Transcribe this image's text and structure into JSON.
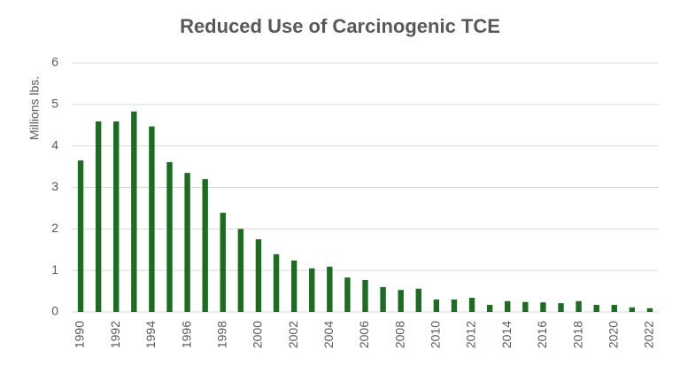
{
  "chart_data": {
    "type": "bar",
    "title": "Reduced Use of Carcinogenic TCE",
    "y_label": "Millions lbs.",
    "categories": [
      "1990",
      null,
      "1992",
      null,
      "1994",
      null,
      "1996",
      null,
      "1998",
      null,
      "2000",
      null,
      "2002",
      null,
      "2004",
      null,
      "2006",
      null,
      "2008",
      null,
      "2010",
      null,
      "2012",
      null,
      "2014",
      null,
      "2016",
      null,
      "2018",
      null,
      "2020",
      null,
      "2022"
    ],
    "values": [
      3.65,
      4.59,
      4.59,
      4.83,
      4.47,
      3.61,
      3.35,
      3.2,
      2.39,
      2.0,
      1.75,
      1.39,
      1.24,
      1.05,
      1.09,
      0.83,
      0.77,
      0.6,
      0.53,
      0.56,
      0.3,
      0.3,
      0.34,
      0.17,
      0.26,
      0.24,
      0.23,
      0.21,
      0.26,
      0.17,
      0.17,
      0.11,
      0.09
    ],
    "color": "#1e6b24",
    "ylim": [
      0,
      6
    ],
    "yticks": [
      0,
      1,
      2,
      3,
      4,
      5,
      6
    ],
    "grid": true
  }
}
